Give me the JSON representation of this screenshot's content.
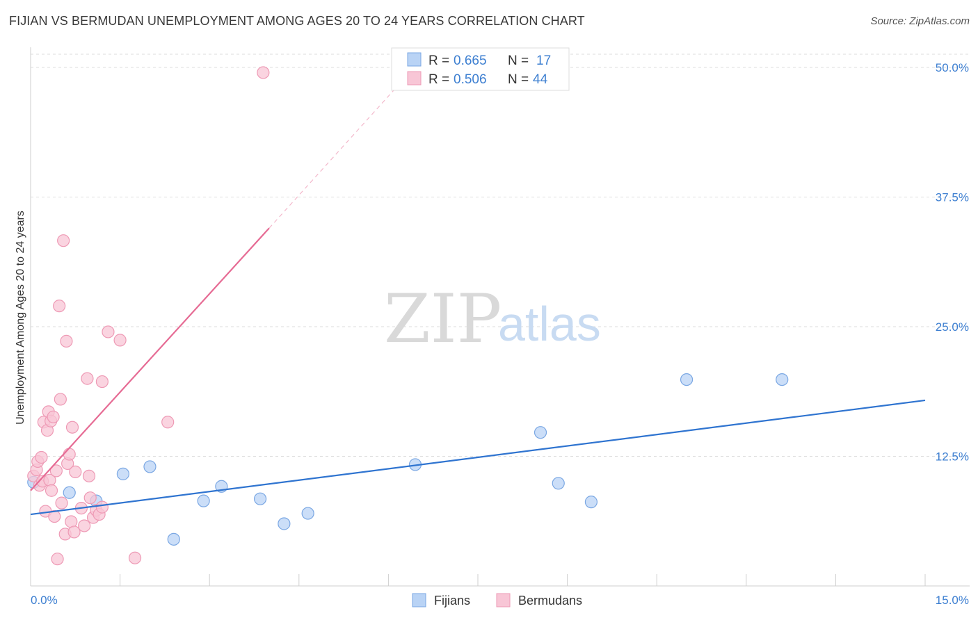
{
  "title": "FIJIAN VS BERMUDAN UNEMPLOYMENT AMONG AGES 20 TO 24 YEARS CORRELATION CHART",
  "source": "Source: ZipAtlas.com",
  "watermark": {
    "zip": "ZIP",
    "atlas": "atlas"
  },
  "colors": {
    "fijians_fill": "#b9d3f5",
    "fijians_stroke": "#7aa7e3",
    "fijians_line": "#2f74d0",
    "bermudans_fill": "#f8c6d6",
    "bermudans_stroke": "#ee9ab5",
    "bermudans_line": "#e66b94",
    "grid": "#dddddd",
    "axis_text": "#3d7fd1"
  },
  "legend": {
    "r_label": "R =",
    "n_label": "N =",
    "rows": [
      {
        "name": "Fijians",
        "r": "0.665",
        "n": "17"
      },
      {
        "name": "Bermudans",
        "r": "0.506",
        "n": "44"
      }
    ]
  },
  "chart_data": {
    "type": "scatter",
    "xlabel": "",
    "ylabel": "Unemployment Among Ages 20 to 24 years",
    "xlim": [
      0,
      15
    ],
    "ylim": [
      0,
      50
    ],
    "x_tick_labels": [
      "0.0%",
      "15.0%"
    ],
    "y_ticks": [
      12.5,
      25.0,
      37.5,
      50.0
    ],
    "y_tick_labels": [
      "12.5%",
      "25.0%",
      "37.5%",
      "50.0%"
    ],
    "grid": true,
    "legend_position": "top-center",
    "series": [
      {
        "name": "Fijians",
        "points": [
          [
            0.05,
            10.0
          ],
          [
            0.65,
            9.0
          ],
          [
            1.1,
            8.2
          ],
          [
            1.55,
            10.8
          ],
          [
            2.0,
            11.5
          ],
          [
            2.4,
            4.5
          ],
          [
            2.9,
            8.2
          ],
          [
            3.2,
            9.6
          ],
          [
            3.85,
            8.4
          ],
          [
            4.25,
            6.0
          ],
          [
            4.65,
            7.0
          ],
          [
            6.45,
            11.7
          ],
          [
            8.55,
            14.8
          ],
          [
            8.85,
            9.9
          ],
          [
            9.4,
            8.1
          ],
          [
            11.0,
            19.9
          ],
          [
            12.6,
            19.9
          ]
        ],
        "trend": {
          "x": [
            0,
            15
          ],
          "y": [
            6.9,
            17.9
          ]
        }
      },
      {
        "name": "Bermudans",
        "points": [
          [
            0.05,
            10.6
          ],
          [
            0.1,
            11.2
          ],
          [
            0.12,
            12.0
          ],
          [
            0.15,
            9.7
          ],
          [
            0.18,
            12.4
          ],
          [
            0.2,
            10.1
          ],
          [
            0.22,
            15.8
          ],
          [
            0.25,
            7.2
          ],
          [
            0.28,
            15.0
          ],
          [
            0.3,
            16.8
          ],
          [
            0.32,
            10.2
          ],
          [
            0.34,
            15.9
          ],
          [
            0.35,
            9.2
          ],
          [
            0.38,
            16.3
          ],
          [
            0.4,
            6.7
          ],
          [
            0.43,
            11.1
          ],
          [
            0.45,
            2.6
          ],
          [
            0.48,
            27.0
          ],
          [
            0.5,
            18.0
          ],
          [
            0.52,
            8.0
          ],
          [
            0.55,
            33.3
          ],
          [
            0.58,
            5.0
          ],
          [
            0.6,
            23.6
          ],
          [
            0.62,
            11.8
          ],
          [
            0.65,
            12.7
          ],
          [
            0.68,
            6.2
          ],
          [
            0.7,
            15.3
          ],
          [
            0.73,
            5.2
          ],
          [
            0.75,
            11.0
          ],
          [
            0.85,
            7.5
          ],
          [
            0.9,
            5.8
          ],
          [
            0.95,
            20.0
          ],
          [
            0.98,
            10.6
          ],
          [
            1.0,
            8.5
          ],
          [
            1.05,
            6.6
          ],
          [
            1.1,
            7.3
          ],
          [
            1.15,
            6.9
          ],
          [
            1.2,
            7.6
          ],
          [
            1.2,
            19.7
          ],
          [
            1.3,
            24.5
          ],
          [
            1.5,
            23.7
          ],
          [
            1.75,
            2.7
          ],
          [
            2.3,
            15.8
          ],
          [
            3.9,
            49.5
          ]
        ],
        "trend": {
          "x": [
            0,
            4.0
          ],
          "y": [
            9.2,
            34.5
          ]
        },
        "trend_extension": {
          "x": [
            4.0,
            6.2
          ],
          "y": [
            34.5,
            48.5
          ]
        }
      }
    ]
  }
}
